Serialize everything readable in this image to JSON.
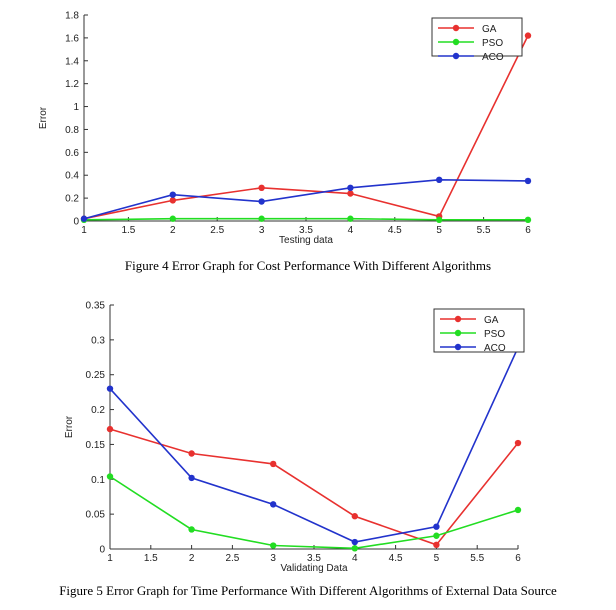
{
  "chart_data": [
    {
      "type": "line",
      "xlabel": "Testing data",
      "ylabel": "Error",
      "x": [
        1,
        2,
        3,
        4,
        5,
        6
      ],
      "xlim": [
        1,
        6
      ],
      "ylim": [
        0,
        1.8
      ],
      "xticks": [
        1,
        1.5,
        2,
        2.5,
        3,
        3.5,
        4,
        4.5,
        5,
        5.5,
        6
      ],
      "xtick_labels": [
        "1",
        "1.5",
        "2",
        "2.5",
        "3",
        "3.5",
        "4",
        "4.5",
        "5",
        "5.5",
        "6"
      ],
      "yticks": [
        0,
        0.2,
        0.4,
        0.6,
        0.8,
        1,
        1.2,
        1.4,
        1.6,
        1.8
      ],
      "ytick_labels": [
        "0",
        "0.2",
        "0.4",
        "0.6",
        "0.8",
        "1",
        "1.2",
        "1.4",
        "1.6",
        "1.8"
      ],
      "grid": false,
      "legend_position": "top-right",
      "series": [
        {
          "name": "GA",
          "color": "#e8312f",
          "values": [
            0.02,
            0.18,
            0.29,
            0.24,
            0.04,
            1.62
          ]
        },
        {
          "name": "PSO",
          "color": "#22dd22",
          "values": [
            0.01,
            0.02,
            0.02,
            0.02,
            0.01,
            0.01
          ]
        },
        {
          "name": "ACO",
          "color": "#2233cc",
          "values": [
            0.02,
            0.23,
            0.17,
            0.29,
            0.36,
            0.35
          ]
        }
      ]
    },
    {
      "type": "line",
      "xlabel": "Validating Data",
      "ylabel": "Error",
      "x": [
        1,
        2,
        3,
        4,
        5,
        6
      ],
      "xlim": [
        1,
        6
      ],
      "ylim": [
        0,
        0.35
      ],
      "xticks": [
        1,
        1.5,
        2,
        2.5,
        3,
        3.5,
        4,
        4.5,
        5,
        5.5,
        6
      ],
      "xtick_labels": [
        "1",
        "1.5",
        "2",
        "2.5",
        "3",
        "3.5",
        "4",
        "4.5",
        "5",
        "5.5",
        "6"
      ],
      "yticks": [
        0,
        0.05,
        0.1,
        0.15,
        0.2,
        0.25,
        0.3,
        0.35
      ],
      "ytick_labels": [
        "0",
        "0.05",
        "0.1",
        "0.15",
        "0.2",
        "0.25",
        "0.3",
        "0.35"
      ],
      "grid": false,
      "legend_position": "top-right",
      "series": [
        {
          "name": "GA",
          "color": "#e8312f",
          "values": [
            0.172,
            0.137,
            0.122,
            0.047,
            0.006,
            0.152
          ]
        },
        {
          "name": "PSO",
          "color": "#22dd22",
          "values": [
            0.104,
            0.028,
            0.005,
            0.001,
            0.019,
            0.056
          ]
        },
        {
          "name": "ACO",
          "color": "#2233cc",
          "values": [
            0.23,
            0.102,
            0.064,
            0.01,
            0.032,
            0.289
          ]
        }
      ]
    }
  ],
  "captions": {
    "fig1": "Figure 4 Error Graph for Cost Performance With Different Algorithms",
    "fig2": "Figure 5 Error Graph for Time Performance With Different Algorithms of External Data Source"
  }
}
